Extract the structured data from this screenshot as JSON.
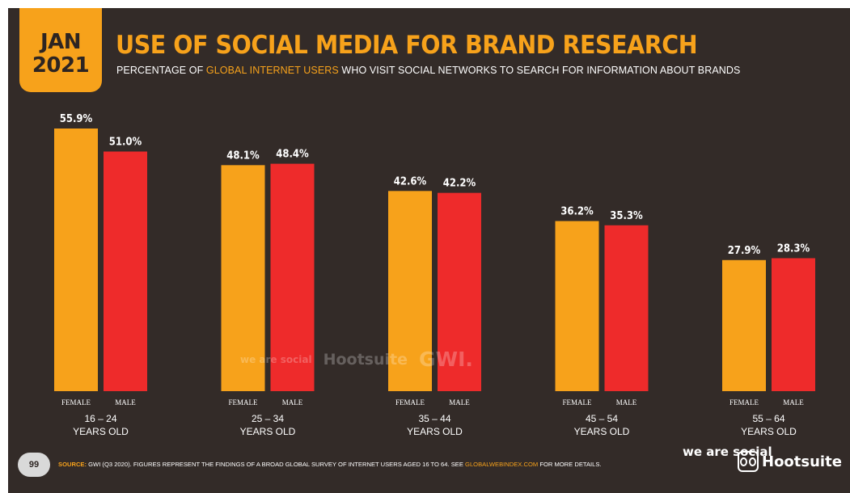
{
  "header": {
    "month": "JAN",
    "year": "2021",
    "title": "USE OF SOCIAL MEDIA FOR BRAND RESEARCH",
    "subtitle_pre": "PERCENTAGE OF ",
    "subtitle_highlight": "GLOBAL INTERNET USERS",
    "subtitle_post": " WHO VISIT SOCIAL NETWORKS TO SEARCH FOR INFORMATION ABOUT BRANDS"
  },
  "chart_data": {
    "type": "bar",
    "categories": [
      "16 – 24",
      "25 – 34",
      "35 – 44",
      "45 – 54",
      "55 – 64"
    ],
    "category_sublabel": "YEARS OLD",
    "series": [
      {
        "name": "FEMALE",
        "color": "#f7a21b",
        "values": [
          55.9,
          48.1,
          42.6,
          36.2,
          27.9
        ],
        "labels": [
          "55.9%",
          "48.1%",
          "42.6%",
          "36.2%",
          "27.9%"
        ]
      },
      {
        "name": "MALE",
        "color": "#ee2b2b",
        "values": [
          51.0,
          48.4,
          42.2,
          35.3,
          28.3
        ],
        "labels": [
          "51.0%",
          "48.4%",
          "42.2%",
          "35.3%",
          "28.3%"
        ]
      }
    ],
    "ylim": [
      0,
      55.9
    ],
    "grid": false
  },
  "watermark": {
    "wm1": "we are social",
    "wm2": "Hootsuite",
    "wm3": "GWI."
  },
  "footer": {
    "page_number": "99",
    "source_label": "SOURCE:",
    "source_text": " GWI (Q3 2020). FIGURES REPRESENT THE FINDINGS OF A BROAD GLOBAL SURVEY OF INTERNET USERS AGED 16 TO 64. SEE ",
    "source_link": "GLOBALWEBINDEX.COM",
    "source_tail": " FOR MORE DETAILS.",
    "logo1": "we are social",
    "logo2": "Hootsuite"
  },
  "colors": {
    "background": "#332b28",
    "accent": "#f7a21b",
    "male": "#ee2b2b"
  }
}
